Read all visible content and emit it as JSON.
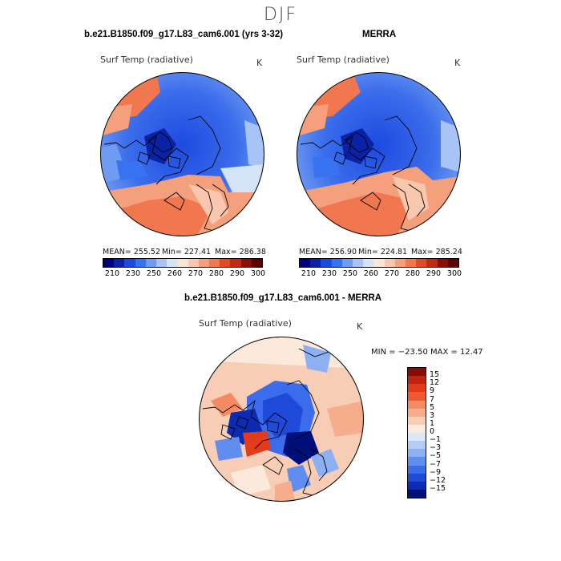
{
  "season": "DJF",
  "left_panel": {
    "title": "b.e21.B1850.f09_g17.L83_cam6.001 (yrs 3-32)",
    "variable": "Surf Temp (radiative)",
    "unit": "K",
    "stats": {
      "mean": "MEAN= 255.52",
      "min": "Min= 227.41",
      "max": "Max= 286.38"
    }
  },
  "right_panel": {
    "title": "MERRA",
    "variable": "Surf Temp (radiative)",
    "unit": "K",
    "stats": {
      "mean": "MEAN= 256.90",
      "min": "Min= 224.81",
      "max": "Max= 285.24"
    }
  },
  "diff_panel": {
    "title": "b.e21.B1850.f09_g17.L83_cam6.001 - MERRA",
    "variable": "Surf Temp (radiative)",
    "unit": "K",
    "minmax": "MIN = −23.50  MAX =  12.47"
  },
  "abs_colorbar": {
    "labels": [
      "210",
      "230",
      "250",
      "260",
      "270",
      "280",
      "290",
      "300"
    ],
    "colors": [
      "#00007f",
      "#0a23a6",
      "#1d4be0",
      "#3773f0",
      "#6f9bf3",
      "#a8c3f5",
      "#d5e3f7",
      "#fbe5d6",
      "#f8c7ad",
      "#f4a07d",
      "#f0774e",
      "#e24a25",
      "#be2a12",
      "#8a1005",
      "#5c0000"
    ]
  },
  "diff_colorbar": {
    "labels": [
      "15",
      "12",
      "9",
      "7",
      "5",
      "3",
      "1",
      "0",
      "−1",
      "−3",
      "−5",
      "−7",
      "−9",
      "−12",
      "−15"
    ],
    "colors": [
      "#8a0a05",
      "#c0240e",
      "#e23c1a",
      "#f05a30",
      "#f48a62",
      "#f5ad8c",
      "#f8cdb5",
      "#fbe9dc",
      "#dbe6f7",
      "#b5cdf5",
      "#8db0f2",
      "#5f8ef0",
      "#3a6ceb",
      "#1f4ad9",
      "#0c2bb2",
      "#00107a"
    ]
  }
}
